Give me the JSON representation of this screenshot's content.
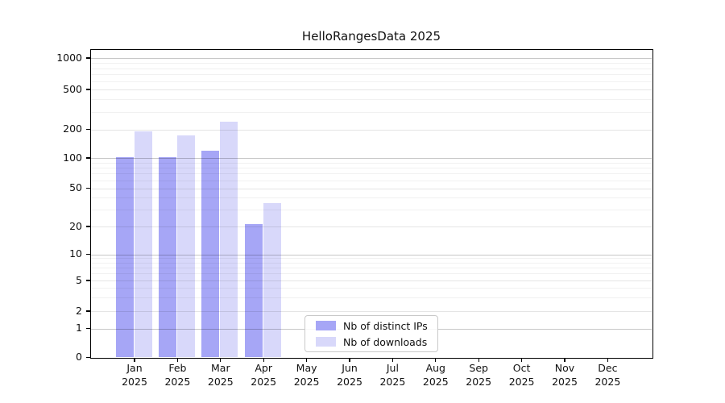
{
  "title": "HelloRangesData 2025",
  "chart_data": {
    "type": "bar",
    "title": "HelloRangesData 2025",
    "year": "2025",
    "categories": [
      "Jan",
      "Feb",
      "Mar",
      "Apr",
      "May",
      "Jun",
      "Jul",
      "Aug",
      "Sep",
      "Oct",
      "Nov",
      "Dec"
    ],
    "series": [
      {
        "name": "Nb of distinct IPs",
        "color": "#a6a6f6",
        "values": [
          102,
          102,
          120,
          21,
          0,
          0,
          0,
          0,
          0,
          0,
          0,
          0
        ]
      },
      {
        "name": "Nb of downloads",
        "color": "#d8d8fa",
        "values": [
          190,
          173,
          238,
          35,
          0,
          0,
          0,
          0,
          0,
          0,
          0,
          0
        ]
      }
    ],
    "yticks": [
      0,
      1,
      2,
      5,
      10,
      20,
      50,
      100,
      200,
      500,
      1000
    ],
    "scale": "symlog",
    "ylim": [
      0,
      1200
    ],
    "grid": true,
    "xlabel": "",
    "ylabel": "",
    "legend": {
      "labels": [
        "Nb of distinct IPs",
        "Nb of downloads"
      ],
      "position": "lower-center-inside"
    }
  }
}
